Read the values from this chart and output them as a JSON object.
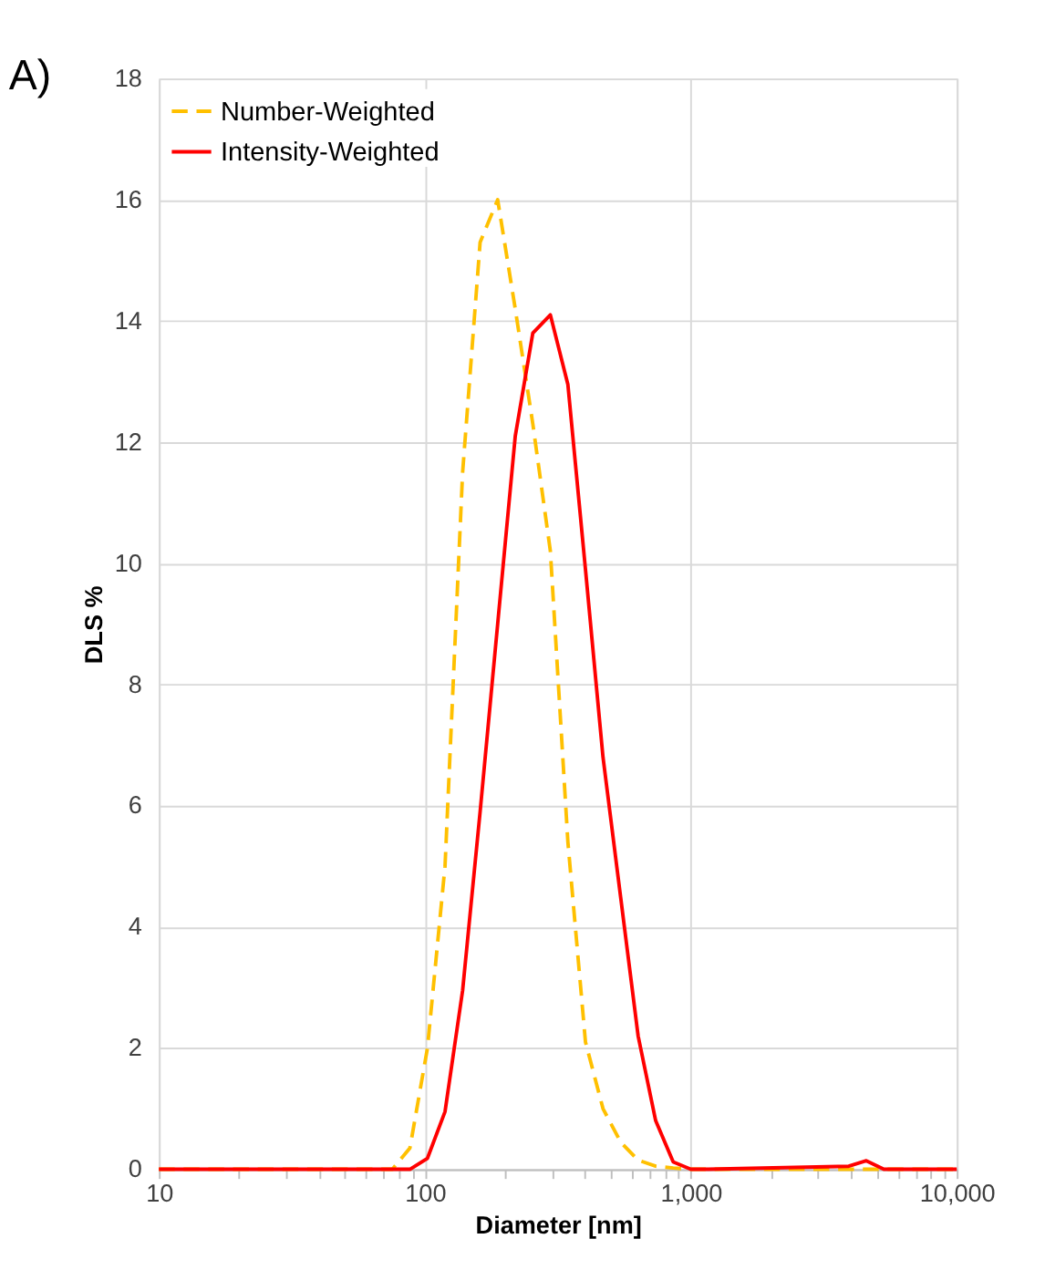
{
  "chart_data": {
    "type": "line",
    "title": "A)",
    "xlabel": "Diameter [nm]",
    "ylabel": "DLS %",
    "log": "x",
    "x": [
      10,
      75.5,
      87.9,
      102.3,
      119.1,
      138.7,
      161.4,
      187.9,
      218.8,
      254.7,
      296.5,
      345.1,
      401.8,
      467.7,
      544.5,
      633.9,
      738,
      859,
      1000,
      1164,
      3926,
      4571,
      5321,
      10000
    ],
    "series": [
      {
        "name": "Number-Weighted",
        "color": "#ffc000",
        "line_style": "dashed",
        "values": [
          0,
          0,
          0.35,
          2.0,
          5.0,
          11.5,
          15.3,
          16.0,
          14.2,
          12.3,
          10.2,
          5.4,
          2.1,
          1.0,
          0.45,
          0.15,
          0.05,
          0.02,
          0,
          0,
          0,
          0,
          0,
          0
        ]
      },
      {
        "name": "Intensity-Weighted",
        "color": "#ff0000",
        "line_style": "solid",
        "values": [
          0,
          0,
          0,
          0.18,
          0.95,
          2.95,
          5.9,
          9.0,
          12.1,
          13.8,
          14.1,
          12.95,
          9.9,
          6.8,
          4.5,
          2.2,
          0.8,
          0.12,
          0,
          0,
          0.05,
          0.14,
          0,
          0
        ]
      }
    ],
    "xlim": [
      10,
      10000
    ],
    "xticks": [
      10,
      {
        "value": 20,
        "label": null
      },
      {
        "value": 30,
        "label": null
      },
      {
        "value": 40,
        "label": null
      },
      {
        "value": 50,
        "label": null
      },
      {
        "value": 60,
        "label": null
      },
      {
        "value": 70,
        "label": null
      },
      {
        "value": 80,
        "label": null
      },
      {
        "value": 90,
        "label": null
      },
      100,
      {
        "value": 200,
        "label": null
      },
      {
        "value": 300,
        "label": null
      },
      {
        "value": 400,
        "label": null
      },
      {
        "value": 500,
        "label": null
      },
      {
        "value": 600,
        "label": null
      },
      {
        "value": 700,
        "label": null
      },
      {
        "value": 800,
        "label": null
      },
      {
        "value": 900,
        "label": null
      },
      {
        "value": 1000,
        "label": "1,000"
      },
      {
        "value": 2000,
        "label": null
      },
      {
        "value": 3000,
        "label": null
      },
      {
        "value": 4000,
        "label": null
      },
      {
        "value": 5000,
        "label": null
      },
      {
        "value": 6000,
        "label": null
      },
      {
        "value": 7000,
        "label": null
      },
      {
        "value": 8000,
        "label": null
      },
      {
        "value": 9000,
        "label": null
      },
      {
        "value": 10000,
        "label": "10,000"
      }
    ],
    "ylim": [
      0,
      18
    ],
    "yticks": [
      0,
      2,
      4,
      6,
      8,
      10,
      12,
      14,
      16,
      18
    ],
    "grid": true,
    "legend": "top left",
    "marker": "none"
  }
}
